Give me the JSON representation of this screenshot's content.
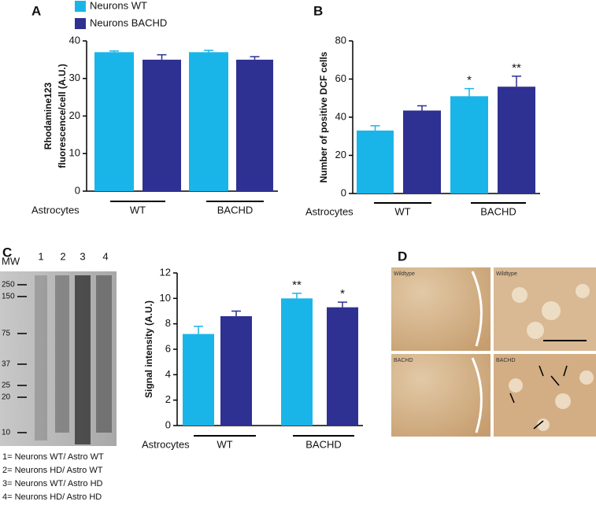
{
  "chart_data": [
    {
      "type": "bar",
      "y_label": [
        "Rhodamine123",
        "fluorescence/cell (A.U.)"
      ],
      "x_label": "Astrocytes",
      "categories": [
        "WT",
        "BACHD"
      ],
      "series": [
        {
          "name": "Neurons WT",
          "color": "#1ab5e8",
          "values": [
            37,
            37
          ],
          "errors": [
            0.3,
            0.5
          ]
        },
        {
          "name": "Neurons BACHD",
          "color": "#2e3192",
          "values": [
            35,
            35
          ],
          "errors": [
            1.3,
            0.8
          ]
        }
      ],
      "ylim": [
        0,
        40
      ],
      "yticks": [
        0,
        10,
        20,
        30,
        40
      ]
    },
    {
      "type": "bar",
      "y_label": [
        "Number of positive DCF cells"
      ],
      "x_label": "Astrocytes",
      "categories": [
        "WT",
        "BACHD"
      ],
      "series": [
        {
          "color": "#1ab5e8",
          "values": [
            33,
            51
          ],
          "errors": [
            2.5,
            4
          ],
          "annotations": [
            null,
            "*"
          ]
        },
        {
          "color": "#2e3192",
          "values": [
            43.5,
            56
          ],
          "errors": [
            2.5,
            5.5
          ],
          "annotations": [
            null,
            "**"
          ]
        }
      ],
      "ylim": [
        0,
        80
      ],
      "yticks": [
        0,
        20,
        40,
        60,
        80
      ]
    },
    {
      "type": "bar",
      "y_label": [
        "Signal intensity (A.U.)"
      ],
      "x_label": "Astrocytes",
      "categories": [
        "WT",
        "BACHD"
      ],
      "series": [
        {
          "color": "#1ab5e8",
          "values": [
            7.2,
            10
          ],
          "errors": [
            0.6,
            0.4
          ],
          "annotations": [
            null,
            "**"
          ]
        },
        {
          "color": "#2e3192",
          "values": [
            8.6,
            9.3
          ],
          "errors": [
            0.4,
            0.4
          ],
          "annotations": [
            null,
            "*"
          ]
        }
      ],
      "ylim": [
        0,
        12
      ],
      "yticks": [
        0,
        2,
        4,
        6,
        8,
        10,
        12
      ]
    }
  ],
  "panels": [
    "A",
    "B",
    "C",
    "D"
  ],
  "blot": {
    "header": "MW",
    "lanes": [
      "1",
      "2",
      "3",
      "4"
    ],
    "markers": [
      "250",
      "150",
      "75",
      "37",
      "25",
      "20",
      "10"
    ],
    "legend": [
      "1= Neurons WT/ Astro WT",
      "2= Neurons HD/ Astro WT",
      "3= Neurons WT/ Astro HD",
      "4= Neurons HD/ Astro HD"
    ]
  },
  "histology": [
    "Wildtype",
    "Wildtype",
    "BACHD",
    "BACHD"
  ]
}
